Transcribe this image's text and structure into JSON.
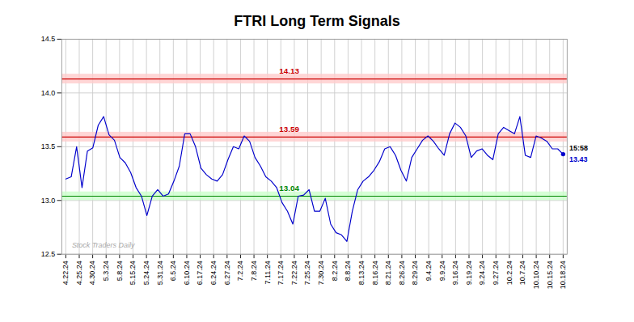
{
  "chart_data": {
    "type": "line",
    "title": "FTRI Long Term Signals",
    "color": "#0000cc",
    "grid": true,
    "x": [
      0,
      0.4022,
      0.8043,
      1.2065,
      1.6087,
      2.0109,
      2.413,
      2.8152,
      3.2174,
      3.6196,
      4.0217,
      4.4239,
      4.8261,
      5.2283,
      5.6304,
      6.0326,
      6.4348,
      6.837,
      7.2391,
      7.6413,
      8.0435,
      8.4457,
      8.8478,
      9.25,
      9.6522,
      10.0543,
      10.4565,
      10.8587,
      11.2609,
      11.663,
      12.0652,
      12.4674,
      12.8696,
      13.2717,
      13.6739,
      14.0761,
      14.4783,
      14.8804,
      15.2826,
      15.6848,
      16.087,
      16.4891,
      16.8913,
      17.2935,
      17.6957,
      18.0978,
      18.5,
      18.9022,
      19.3043,
      19.7065,
      20.1087,
      20.5109,
      20.913,
      21.3152,
      21.7174,
      22.1196,
      22.5217,
      22.9239,
      23.3261,
      23.7283,
      24.1304,
      24.5326,
      24.9348,
      25.337,
      25.7391,
      26.1413,
      26.5435,
      26.9457,
      27.3478,
      27.75,
      28.1522,
      28.5543,
      28.9565,
      29.3587,
      29.7609,
      30.163,
      30.5652,
      30.9674,
      31.3696,
      31.7717,
      32.1739,
      32.5761,
      32.9783,
      33.3804,
      33.7826,
      34.1848,
      34.587,
      34.9891,
      35.3913,
      35.7935,
      36.1957,
      36.5978,
      37
    ],
    "values": [
      13.2,
      13.22,
      13.5,
      13.12,
      13.46,
      13.49,
      13.7,
      13.78,
      13.61,
      13.56,
      13.4,
      13.35,
      13.26,
      13.12,
      13.04,
      12.86,
      13.04,
      13.1,
      13.04,
      13.06,
      13.18,
      13.32,
      13.62,
      13.62,
      13.5,
      13.3,
      13.24,
      13.2,
      13.18,
      13.24,
      13.38,
      13.5,
      13.48,
      13.6,
      13.55,
      13.4,
      13.32,
      13.22,
      13.18,
      13.12,
      12.98,
      12.9,
      12.78,
      13.04,
      13.05,
      13.1,
      12.9,
      12.9,
      13.02,
      12.78,
      12.7,
      12.68,
      12.62,
      12.9,
      13.1,
      13.18,
      13.22,
      13.28,
      13.36,
      13.48,
      13.5,
      13.42,
      13.28,
      13.18,
      13.4,
      13.48,
      13.56,
      13.6,
      13.55,
      13.48,
      13.42,
      13.62,
      13.72,
      13.68,
      13.6,
      13.4,
      13.46,
      13.48,
      13.42,
      13.38,
      13.62,
      13.68,
      13.65,
      13.62,
      13.78,
      13.42,
      13.4,
      13.6,
      13.58,
      13.55,
      13.48,
      13.48,
      13.43
    ],
    "xlim": [
      -0.3,
      37.3
    ],
    "xticks": [
      {
        "value": 0,
        "label": "4.22.24"
      },
      {
        "value": 1,
        "label": "4.25.24"
      },
      {
        "value": 2,
        "label": "4.30.24"
      },
      {
        "value": 3,
        "label": "5.3.24"
      },
      {
        "value": 4,
        "label": "5.8.24"
      },
      {
        "value": 5,
        "label": "5.15.24"
      },
      {
        "value": 6,
        "label": "5.24.24"
      },
      {
        "value": 7,
        "label": "5.31.24"
      },
      {
        "value": 8,
        "label": "6.5.24"
      },
      {
        "value": 9,
        "label": "6.10.24"
      },
      {
        "value": 10,
        "label": "6.17.24"
      },
      {
        "value": 11,
        "label": "6.24.24"
      },
      {
        "value": 12,
        "label": "6.27.24"
      },
      {
        "value": 13,
        "label": "7.2.24"
      },
      {
        "value": 14,
        "label": "7.8.24"
      },
      {
        "value": 15,
        "label": "7.11.24"
      },
      {
        "value": 16,
        "label": "7.17.24"
      },
      {
        "value": 17,
        "label": "7.22.24"
      },
      {
        "value": 18,
        "label": "7.25.24"
      },
      {
        "value": 19,
        "label": "7.30.24"
      },
      {
        "value": 20,
        "label": "8.2.24"
      },
      {
        "value": 21,
        "label": "8.8.24"
      },
      {
        "value": 22,
        "label": "8.13.24"
      },
      {
        "value": 23,
        "label": "8.16.24"
      },
      {
        "value": 24,
        "label": "8.21.24"
      },
      {
        "value": 25,
        "label": "8.26.24"
      },
      {
        "value": 26,
        "label": "8.29.24"
      },
      {
        "value": 27,
        "label": "9.4.24"
      },
      {
        "value": 28,
        "label": "9.9.24"
      },
      {
        "value": 29,
        "label": "9.16.24"
      },
      {
        "value": 30,
        "label": "9.19.24"
      },
      {
        "value": 31,
        "label": "9.24.24"
      },
      {
        "value": 32,
        "label": "9.27.24"
      },
      {
        "value": 33,
        "label": "10.2.24"
      },
      {
        "value": 34,
        "label": "10.7.24"
      },
      {
        "value": 35,
        "label": "10.10.24"
      },
      {
        "value": 36,
        "label": "10.15.24"
      },
      {
        "value": 37,
        "label": "10.18.24"
      }
    ],
    "ylim": [
      12.5,
      14.5
    ],
    "yticks": [
      12.5,
      {
        "value": 13,
        "label": "13.0"
      },
      13.5,
      {
        "value": 14,
        "label": "14.0"
      },
      14.5
    ],
    "hlines": [
      {
        "value": 14.13,
        "label": "14.13",
        "color": "#cc0000",
        "fill": "#ffcccc",
        "band": [
          14.085,
          14.175
        ]
      },
      {
        "value": 13.59,
        "label": "13.59",
        "color": "#cc0000",
        "fill": "#ffcccc",
        "band": [
          13.545,
          13.635
        ]
      },
      {
        "value": 13.04,
        "label": "13.04",
        "color": "#008800",
        "fill": "#ccffcc",
        "band": [
          13.0,
          13.08
        ]
      }
    ],
    "last_point": {
      "x": 37,
      "y": 13.43,
      "label": "15:58",
      "value_label": "13.43",
      "color": "#0000cc"
    },
    "watermark": {
      "text": "Stock Traders Daily",
      "y": 12.56,
      "color": "#aaaaaa"
    }
  }
}
